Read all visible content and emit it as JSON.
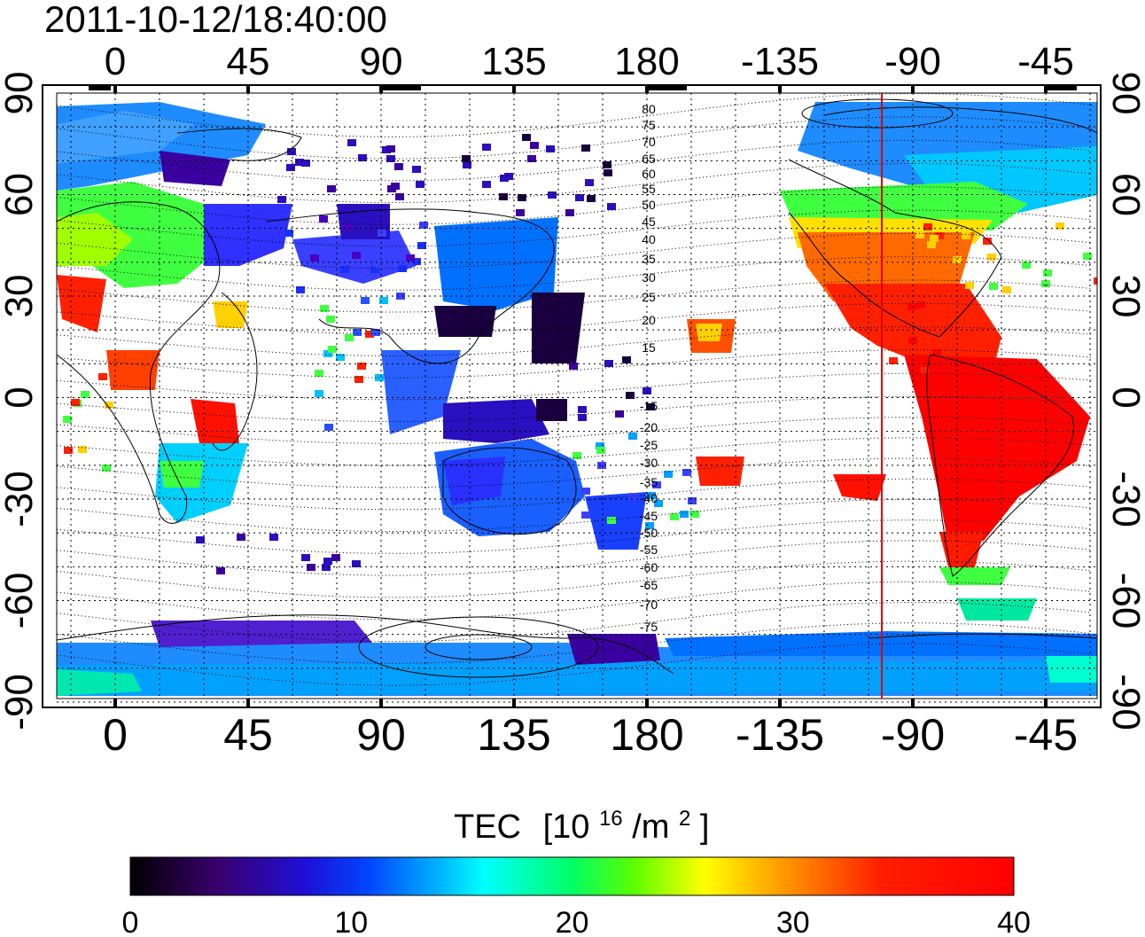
{
  "timestamp": "2011-10-12/18:40:00",
  "colorbar": {
    "title": "TEC",
    "unit_base": "[10",
    "unit_exp": "16",
    "unit_mid": "/m",
    "unit_exp2": "2",
    "unit_close": "]",
    "ticks": [
      "0",
      "10",
      "20",
      "30",
      "40"
    ],
    "stops": [
      "#000000",
      "#3a006e",
      "#1e10d8",
      "#0046ff",
      "#00b4ff",
      "#00ffff",
      "#00ff64",
      "#5aff00",
      "#ffff00",
      "#ff8c00",
      "#ff1e00",
      "#ff0000"
    ]
  },
  "axes": {
    "lon_ticks": [
      "0",
      "45",
      "90",
      "135",
      "180",
      "-135",
      "-90",
      "-45"
    ],
    "lat_ticks": [
      "90",
      "60",
      "30",
      "0",
      "-30",
      "-60",
      "-90"
    ]
  },
  "contour_labels": [
    "80",
    "75",
    "70",
    "65",
    "60",
    "55",
    "50",
    "45",
    "40",
    "35",
    "30",
    "25",
    "20",
    "15",
    "-15",
    "-20",
    "-25",
    "-30",
    "-35",
    "-40",
    "-45",
    "-50",
    "-55",
    "-60",
    "-65",
    "-70",
    "-75"
  ],
  "map": {
    "tec_note": "",
    "terminator_color": "#e00000"
  }
}
